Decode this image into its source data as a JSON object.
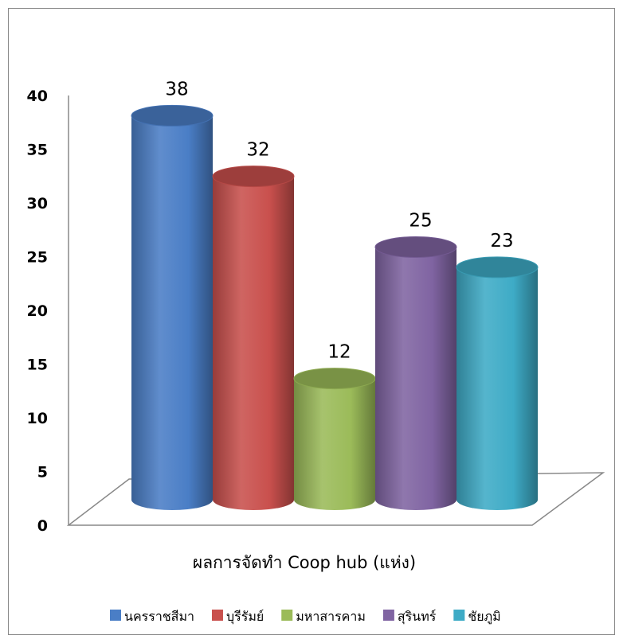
{
  "chart_data": {
    "type": "bar",
    "style": "3d-cylinder",
    "categories": [
      "ผลการจัดทำ Coop hub (แห่ง)"
    ],
    "series": [
      {
        "name": "นครราชสีมา",
        "values": [
          38
        ],
        "color": "#4A7EC6"
      },
      {
        "name": "บุรีรัมย์",
        "values": [
          32
        ],
        "color": "#C9504D"
      },
      {
        "name": "มหาสารคาม",
        "values": [
          12
        ],
        "color": "#9BBB59"
      },
      {
        "name": "สุรินทร์",
        "values": [
          25
        ],
        "color": "#8064A2"
      },
      {
        "name": "ชัยภูมิ",
        "values": [
          23
        ],
        "color": "#3EABC6"
      }
    ],
    "xlabel": "ผลการจัดทำ Coop hub (แห่ง)",
    "ylabel": "",
    "ylim": [
      0,
      40
    ],
    "yticks": [
      0,
      5,
      10,
      15,
      20,
      25,
      30,
      35,
      40
    ],
    "grid": false,
    "legend": "bottom"
  }
}
